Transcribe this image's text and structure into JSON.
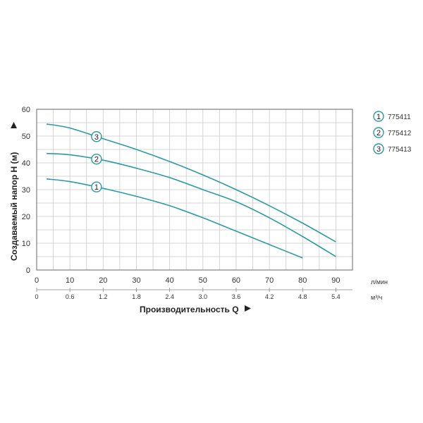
{
  "chart_data": {
    "type": "line",
    "title": "",
    "xlabel": "Производительность Q",
    "ylabel": "Создаваемый напор H (м)",
    "x_unit": "л/мин",
    "x2_unit": "м³/ч",
    "xlim": [
      0,
      95
    ],
    "ylim": [
      0,
      60
    ],
    "x_ticks": [
      0,
      10,
      20,
      30,
      40,
      50,
      60,
      70,
      80,
      90
    ],
    "x_tick_labels": [
      "0",
      "10",
      "20",
      "30",
      "40",
      "50",
      "60",
      "70",
      "80",
      "90"
    ],
    "x2_ticks": [
      0,
      10,
      20,
      30,
      40,
      50,
      60,
      70,
      80,
      90
    ],
    "x2_tick_labels": [
      "0",
      "0.6",
      "1.2",
      "1.8",
      "2.4",
      "3.0",
      "3.6",
      "4.2",
      "4.8",
      "5.4"
    ],
    "y_ticks": [
      0,
      10,
      20,
      30,
      40,
      50,
      60
    ],
    "y_tick_labels": [
      "0",
      "10",
      "20",
      "30",
      "40",
      "50",
      "60"
    ],
    "grid": true,
    "legend_position": "right",
    "line_color": "#2a9ba6",
    "series": [
      {
        "name": "775411",
        "marker_label": "1",
        "marker_x": 18,
        "x": [
          3,
          10,
          20,
          30,
          40,
          50,
          60,
          70,
          80
        ],
        "y": [
          34,
          33,
          30.5,
          27.5,
          24,
          19.5,
          14.5,
          9.5,
          4.5
        ]
      },
      {
        "name": "775412",
        "marker_label": "2",
        "marker_x": 18,
        "x": [
          3,
          10,
          20,
          30,
          40,
          50,
          60,
          70,
          80,
          90
        ],
        "y": [
          43.5,
          43,
          41,
          38,
          34.5,
          30,
          25.5,
          19.5,
          12.5,
          5
        ]
      },
      {
        "name": "775413",
        "marker_label": "3",
        "marker_x": 18,
        "x": [
          3,
          10,
          20,
          30,
          40,
          50,
          60,
          70,
          80,
          90
        ],
        "y": [
          54.5,
          53,
          49,
          45,
          40.5,
          35.5,
          30,
          24,
          17.5,
          10.5
        ]
      }
    ]
  }
}
